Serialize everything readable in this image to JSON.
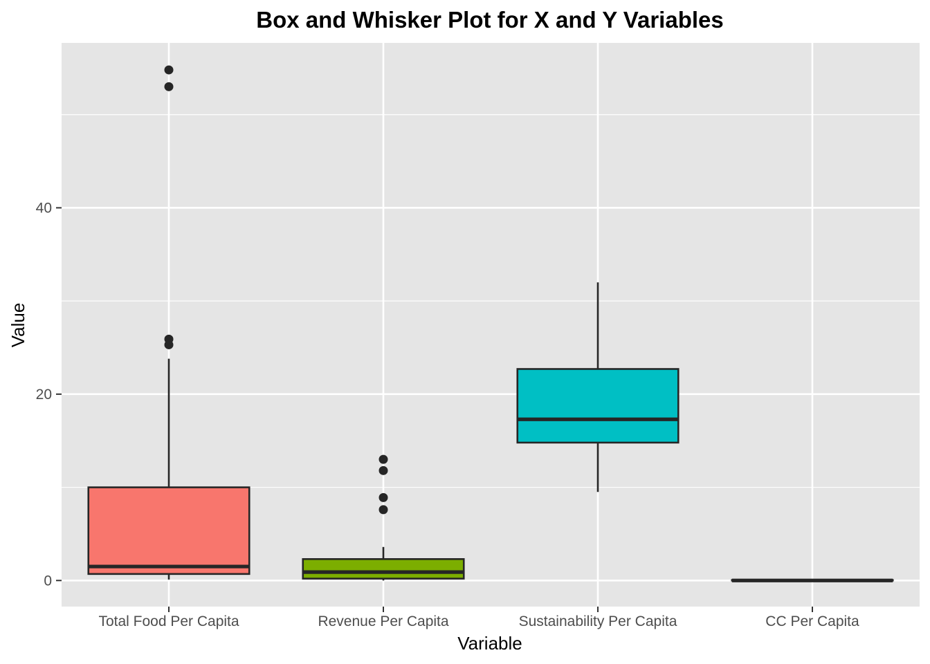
{
  "chart_data": {
    "type": "boxplot",
    "title": "Box and Whisker Plot for X and Y Variables",
    "xlabel": "Variable",
    "ylabel": "Value",
    "ylim": [
      -2.8,
      57.7
    ],
    "y_ticks": [
      0,
      20,
      40
    ],
    "y_minor_ticks": [
      10,
      30,
      50
    ],
    "grid": true,
    "legend": "none",
    "panel_color": "#e5e5e5",
    "grid_color": "#ffffff",
    "box_outline_color": "#262626",
    "categories": [
      "Total Food Per Capita",
      "Revenue Per Capita",
      "Sustainability Per Capita",
      "CC Per Capita"
    ],
    "boxes": [
      {
        "label": "Total Food Per Capita",
        "color": "#f8766d",
        "whisker_low": 0.1,
        "q1": 0.7,
        "median": 1.5,
        "q3": 10.0,
        "whisker_high": 23.8,
        "outliers": [
          25.3,
          25.9,
          53.0,
          54.8
        ]
      },
      {
        "label": "Revenue Per Capita",
        "color": "#7cae00",
        "whisker_low": 0.0,
        "q1": 0.2,
        "median": 0.9,
        "q3": 2.3,
        "whisker_high": 3.6,
        "outliers": [
          7.6,
          8.9,
          11.8,
          13.0
        ]
      },
      {
        "label": "Sustainability Per Capita",
        "color": "#00bfc4",
        "whisker_low": 9.5,
        "q1": 14.8,
        "median": 17.3,
        "q3": 22.7,
        "whisker_high": 32.0,
        "outliers": []
      },
      {
        "label": "CC Per Capita",
        "color": "#c77cff",
        "whisker_low": 0.0,
        "q1": 0.0,
        "median": 0.0,
        "q3": 0.05,
        "whisker_high": 0.05,
        "outliers": []
      }
    ]
  }
}
